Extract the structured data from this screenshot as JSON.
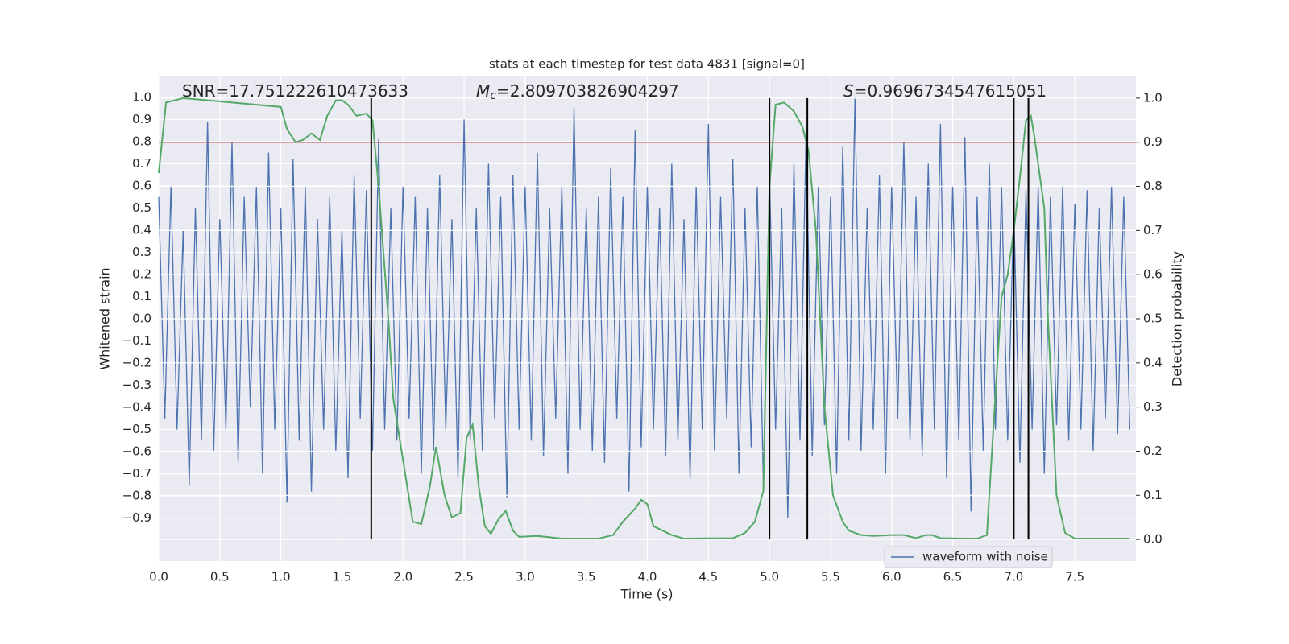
{
  "chart_data": {
    "type": "line",
    "title": "stats at each timestep for test data 4831 [signal=0]",
    "xlabel": "Time (s)",
    "ylabel": "Whitened strain",
    "y2label": "Detection probability",
    "annotations": [
      {
        "text": "SNR=17.751222610473633"
      },
      {
        "symbol": "M",
        "subscript": "c",
        "text": "=2.809703826904297"
      },
      {
        "symbol": "S",
        "text": "=0.9696734547615051"
      }
    ],
    "xlim": [
      0,
      8
    ],
    "ylim": [
      -1.094,
      1.094
    ],
    "y2lim": [
      -0.049,
      1.049
    ],
    "xticks": [
      {
        "value": 0,
        "label": "0.0"
      },
      {
        "value": 0.5,
        "label": "0.5"
      },
      {
        "value": 1,
        "label": "1.0"
      },
      {
        "value": 1.5,
        "label": "1.5"
      },
      {
        "value": 2,
        "label": "2.0"
      },
      {
        "value": 2.5,
        "label": "2.5"
      },
      {
        "value": 3,
        "label": "3.0"
      },
      {
        "value": 3.5,
        "label": "3.5"
      },
      {
        "value": 4,
        "label": "4.0"
      },
      {
        "value": 4.5,
        "label": "4.5"
      },
      {
        "value": 5,
        "label": "5.0"
      },
      {
        "value": 5.5,
        "label": "5.5"
      },
      {
        "value": 6,
        "label": "6.0"
      },
      {
        "value": 6.5,
        "label": "6.5"
      },
      {
        "value": 7,
        "label": "7.0"
      },
      {
        "value": 7.5,
        "label": "7.5"
      }
    ],
    "yticks": [
      {
        "value": -0.9,
        "label": "−0.9"
      },
      {
        "value": -0.8,
        "label": "−0.8"
      },
      {
        "value": -0.7,
        "label": "−0.7"
      },
      {
        "value": -0.6,
        "label": "−0.6"
      },
      {
        "value": -0.5,
        "label": "−0.5"
      },
      {
        "value": -0.4,
        "label": "−0.4"
      },
      {
        "value": -0.3,
        "label": "−0.3"
      },
      {
        "value": -0.2,
        "label": "−0.2"
      },
      {
        "value": -0.1,
        "label": "−0.1"
      },
      {
        "value": 0,
        "label": "0.0"
      },
      {
        "value": 0.1,
        "label": "0.1"
      },
      {
        "value": 0.2,
        "label": "0.2"
      },
      {
        "value": 0.3,
        "label": "0.3"
      },
      {
        "value": 0.4,
        "label": "0.4"
      },
      {
        "value": 0.5,
        "label": "0.5"
      },
      {
        "value": 0.6,
        "label": "0.6"
      },
      {
        "value": 0.7,
        "label": "0.7"
      },
      {
        "value": 0.8,
        "label": "0.8"
      },
      {
        "value": 0.9,
        "label": "0.9"
      },
      {
        "value": 1,
        "label": "1.0"
      }
    ],
    "y2ticks": [
      {
        "value": 0,
        "label": "0.0"
      },
      {
        "value": 0.1,
        "label": "0.1"
      },
      {
        "value": 0.2,
        "label": "0.2"
      },
      {
        "value": 0.3,
        "label": "0.3"
      },
      {
        "value": 0.4,
        "label": "0.4"
      },
      {
        "value": 0.5,
        "label": "0.5"
      },
      {
        "value": 0.6,
        "label": "0.6"
      },
      {
        "value": 0.7,
        "label": "0.7"
      },
      {
        "value": 0.8,
        "label": "0.8"
      },
      {
        "value": 0.9,
        "label": "0.9"
      },
      {
        "value": 1,
        "label": "1.0"
      }
    ],
    "grid": true,
    "background": "#eaeaf2",
    "legend": "lower right",
    "series": [
      {
        "name": "waveform with noise",
        "color": "#4c72b0",
        "axis": "y",
        "x": [
          0,
          0.05,
          0.1,
          0.15,
          0.2,
          0.25,
          0.3,
          0.35,
          0.4,
          0.45,
          0.5,
          0.55,
          0.6,
          0.65,
          0.7,
          0.75,
          0.8,
          0.85,
          0.9,
          0.95,
          1,
          1.05,
          1.1,
          1.15,
          1.2,
          1.25,
          1.3,
          1.35,
          1.4,
          1.45,
          1.5,
          1.55,
          1.6,
          1.65,
          1.7,
          1.75,
          1.8,
          1.85,
          1.9,
          1.95,
          2,
          2.05,
          2.1,
          2.15,
          2.2,
          2.25,
          2.3,
          2.35,
          2.4,
          2.45,
          2.5,
          2.55,
          2.6,
          2.65,
          2.7,
          2.75,
          2.8,
          2.85,
          2.9,
          2.95,
          3,
          3.05,
          3.1,
          3.15,
          3.2,
          3.25,
          3.3,
          3.35,
          3.4,
          3.45,
          3.5,
          3.55,
          3.6,
          3.65,
          3.7,
          3.75,
          3.8,
          3.85,
          3.9,
          3.95,
          4,
          4.05,
          4.1,
          4.15,
          4.2,
          4.25,
          4.3,
          4.35,
          4.4,
          4.45,
          4.5,
          4.55,
          4.6,
          4.65,
          4.7,
          4.75,
          4.8,
          4.85,
          4.9,
          4.95,
          5,
          5.05,
          5.1,
          5.15,
          5.2,
          5.25,
          5.3,
          5.35,
          5.4,
          5.45,
          5.5,
          5.55,
          5.6,
          5.65,
          5.7,
          5.75,
          5.8,
          5.85,
          5.9,
          5.95,
          6,
          6.05,
          6.1,
          6.15,
          6.2,
          6.25,
          6.3,
          6.35,
          6.4,
          6.45,
          6.5,
          6.55,
          6.6,
          6.65,
          6.7,
          6.75,
          6.8,
          6.85,
          6.9,
          6.95,
          7,
          7.05,
          7.1,
          7.15,
          7.2,
          7.25,
          7.3,
          7.35,
          7.4,
          7.45,
          7.5,
          7.55,
          7.6,
          7.65,
          7.7,
          7.75,
          7.8,
          7.85,
          7.9,
          7.95
        ],
        "values": [
          0.55,
          -0.45,
          0.6,
          -0.5,
          0.4,
          -0.75,
          0.5,
          -0.55,
          0.89,
          -0.6,
          0.45,
          -0.5,
          0.8,
          -0.65,
          0.55,
          -0.4,
          0.6,
          -0.7,
          0.75,
          -0.5,
          0.5,
          -0.83,
          0.72,
          -0.55,
          0.6,
          -0.78,
          0.45,
          -0.5,
          0.55,
          -0.6,
          0.4,
          -0.72,
          0.65,
          -0.45,
          0.58,
          -0.6,
          0.81,
          -0.5,
          0.5,
          -0.55,
          0.6,
          -0.45,
          0.55,
          -0.7,
          0.5,
          -0.6,
          0.65,
          -0.5,
          0.45,
          -0.72,
          0.9,
          -0.55,
          0.5,
          -0.6,
          0.7,
          -0.45,
          0.55,
          -0.81,
          0.65,
          -0.5,
          0.6,
          -0.55,
          0.75,
          -0.62,
          0.5,
          -0.45,
          0.6,
          -0.7,
          0.95,
          -0.5,
          0.5,
          -0.6,
          0.55,
          -0.65,
          0.68,
          -0.45,
          0.55,
          -0.78,
          0.85,
          -0.58,
          0.6,
          -0.5,
          0.5,
          -0.62,
          0.7,
          -0.55,
          0.45,
          -0.72,
          0.6,
          -0.5,
          0.88,
          -0.6,
          0.55,
          -0.45,
          0.72,
          -0.7,
          0.5,
          -0.58,
          0.6,
          -0.75,
          0.65,
          -0.5,
          0.5,
          -0.9,
          0.7,
          -0.55,
          0.85,
          -0.62,
          0.6,
          -0.48,
          0.55,
          -0.7,
          0.78,
          -0.55,
          1.0,
          -0.6,
          0.5,
          -0.5,
          0.65,
          -0.7,
          0.6,
          -0.45,
          0.8,
          -0.55,
          0.55,
          -0.62,
          0.7,
          -0.5,
          0.88,
          -0.72,
          0.6,
          -0.55,
          0.82,
          -0.87,
          0.55,
          -0.6,
          0.7,
          -0.5,
          0.6,
          -0.55,
          0.5,
          -0.65,
          0.58,
          -0.5,
          0.6,
          -0.7,
          0.55,
          -0.48,
          0.6,
          -0.55,
          0.52,
          -0.5,
          0.58,
          -0.6,
          0.5,
          -0.45,
          0.6,
          -0.52,
          0.55,
          -0.5
        ]
      },
      {
        "color": "#55a868",
        "axis": "y2",
        "x": [
          0,
          0.06,
          0.2,
          1,
          1.05,
          1.12,
          1.18,
          1.25,
          1.32,
          1.38,
          1.45,
          1.5,
          1.55,
          1.62,
          1.7,
          1.75,
          1.8,
          1.88,
          1.92,
          2,
          2.08,
          2.15,
          2.22,
          2.27,
          2.34,
          2.4,
          2.47,
          2.52,
          2.57,
          2.62,
          2.67,
          2.72,
          2.78,
          2.84,
          2.9,
          2.95,
          3.1,
          3.3,
          3.6,
          3.72,
          3.8,
          3.9,
          3.95,
          4,
          4.05,
          4.2,
          4.3,
          4.7,
          4.8,
          4.88,
          4.95,
          5,
          5.05,
          5.12,
          5.2,
          5.27,
          5.32,
          5.38,
          5.45,
          5.52,
          5.6,
          5.65,
          5.75,
          5.85,
          6,
          6.1,
          6.2,
          6.28,
          6.33,
          6.4,
          6.6,
          6.7,
          6.78,
          6.85,
          6.9,
          6.95,
          7,
          7.05,
          7.1,
          7.14,
          7.17,
          7.25,
          7.28,
          7.35,
          7.42,
          7.5,
          7.6,
          7.8,
          7.95
        ],
        "values": [
          0.83,
          0.99,
          1.0,
          0.98,
          0.93,
          0.9,
          0.905,
          0.92,
          0.905,
          0.96,
          0.995,
          0.995,
          0.985,
          0.96,
          0.965,
          0.95,
          0.8,
          0.5,
          0.32,
          0.18,
          0.04,
          0.035,
          0.12,
          0.21,
          0.1,
          0.05,
          0.06,
          0.23,
          0.26,
          0.12,
          0.03,
          0.013,
          0.045,
          0.065,
          0.02,
          0.006,
          0.008,
          0.002,
          0.002,
          0.01,
          0.04,
          0.07,
          0.09,
          0.08,
          0.03,
          0.01,
          0.002,
          0.003,
          0.015,
          0.04,
          0.11,
          0.8,
          0.985,
          0.99,
          0.97,
          0.935,
          0.88,
          0.7,
          0.3,
          0.1,
          0.04,
          0.02,
          0.01,
          0.008,
          0.01,
          0.01,
          0.003,
          0.01,
          0.01,
          0.003,
          0.002,
          0.002,
          0.01,
          0.33,
          0.55,
          0.6,
          0.7,
          0.82,
          0.95,
          0.96,
          0.91,
          0.75,
          0.5,
          0.1,
          0.015,
          0.002,
          0.002,
          0.002,
          0.002
        ]
      }
    ],
    "hlines": [
      {
        "axis": "y2",
        "value": 0.9,
        "color": "#c44e52"
      }
    ],
    "vlines": {
      "axis": "y2",
      "x": [
        1.74,
        5.0,
        5.31,
        7.0,
        7.12
      ],
      "ymin": 0,
      "ymax": 1,
      "color": "#000000"
    }
  }
}
